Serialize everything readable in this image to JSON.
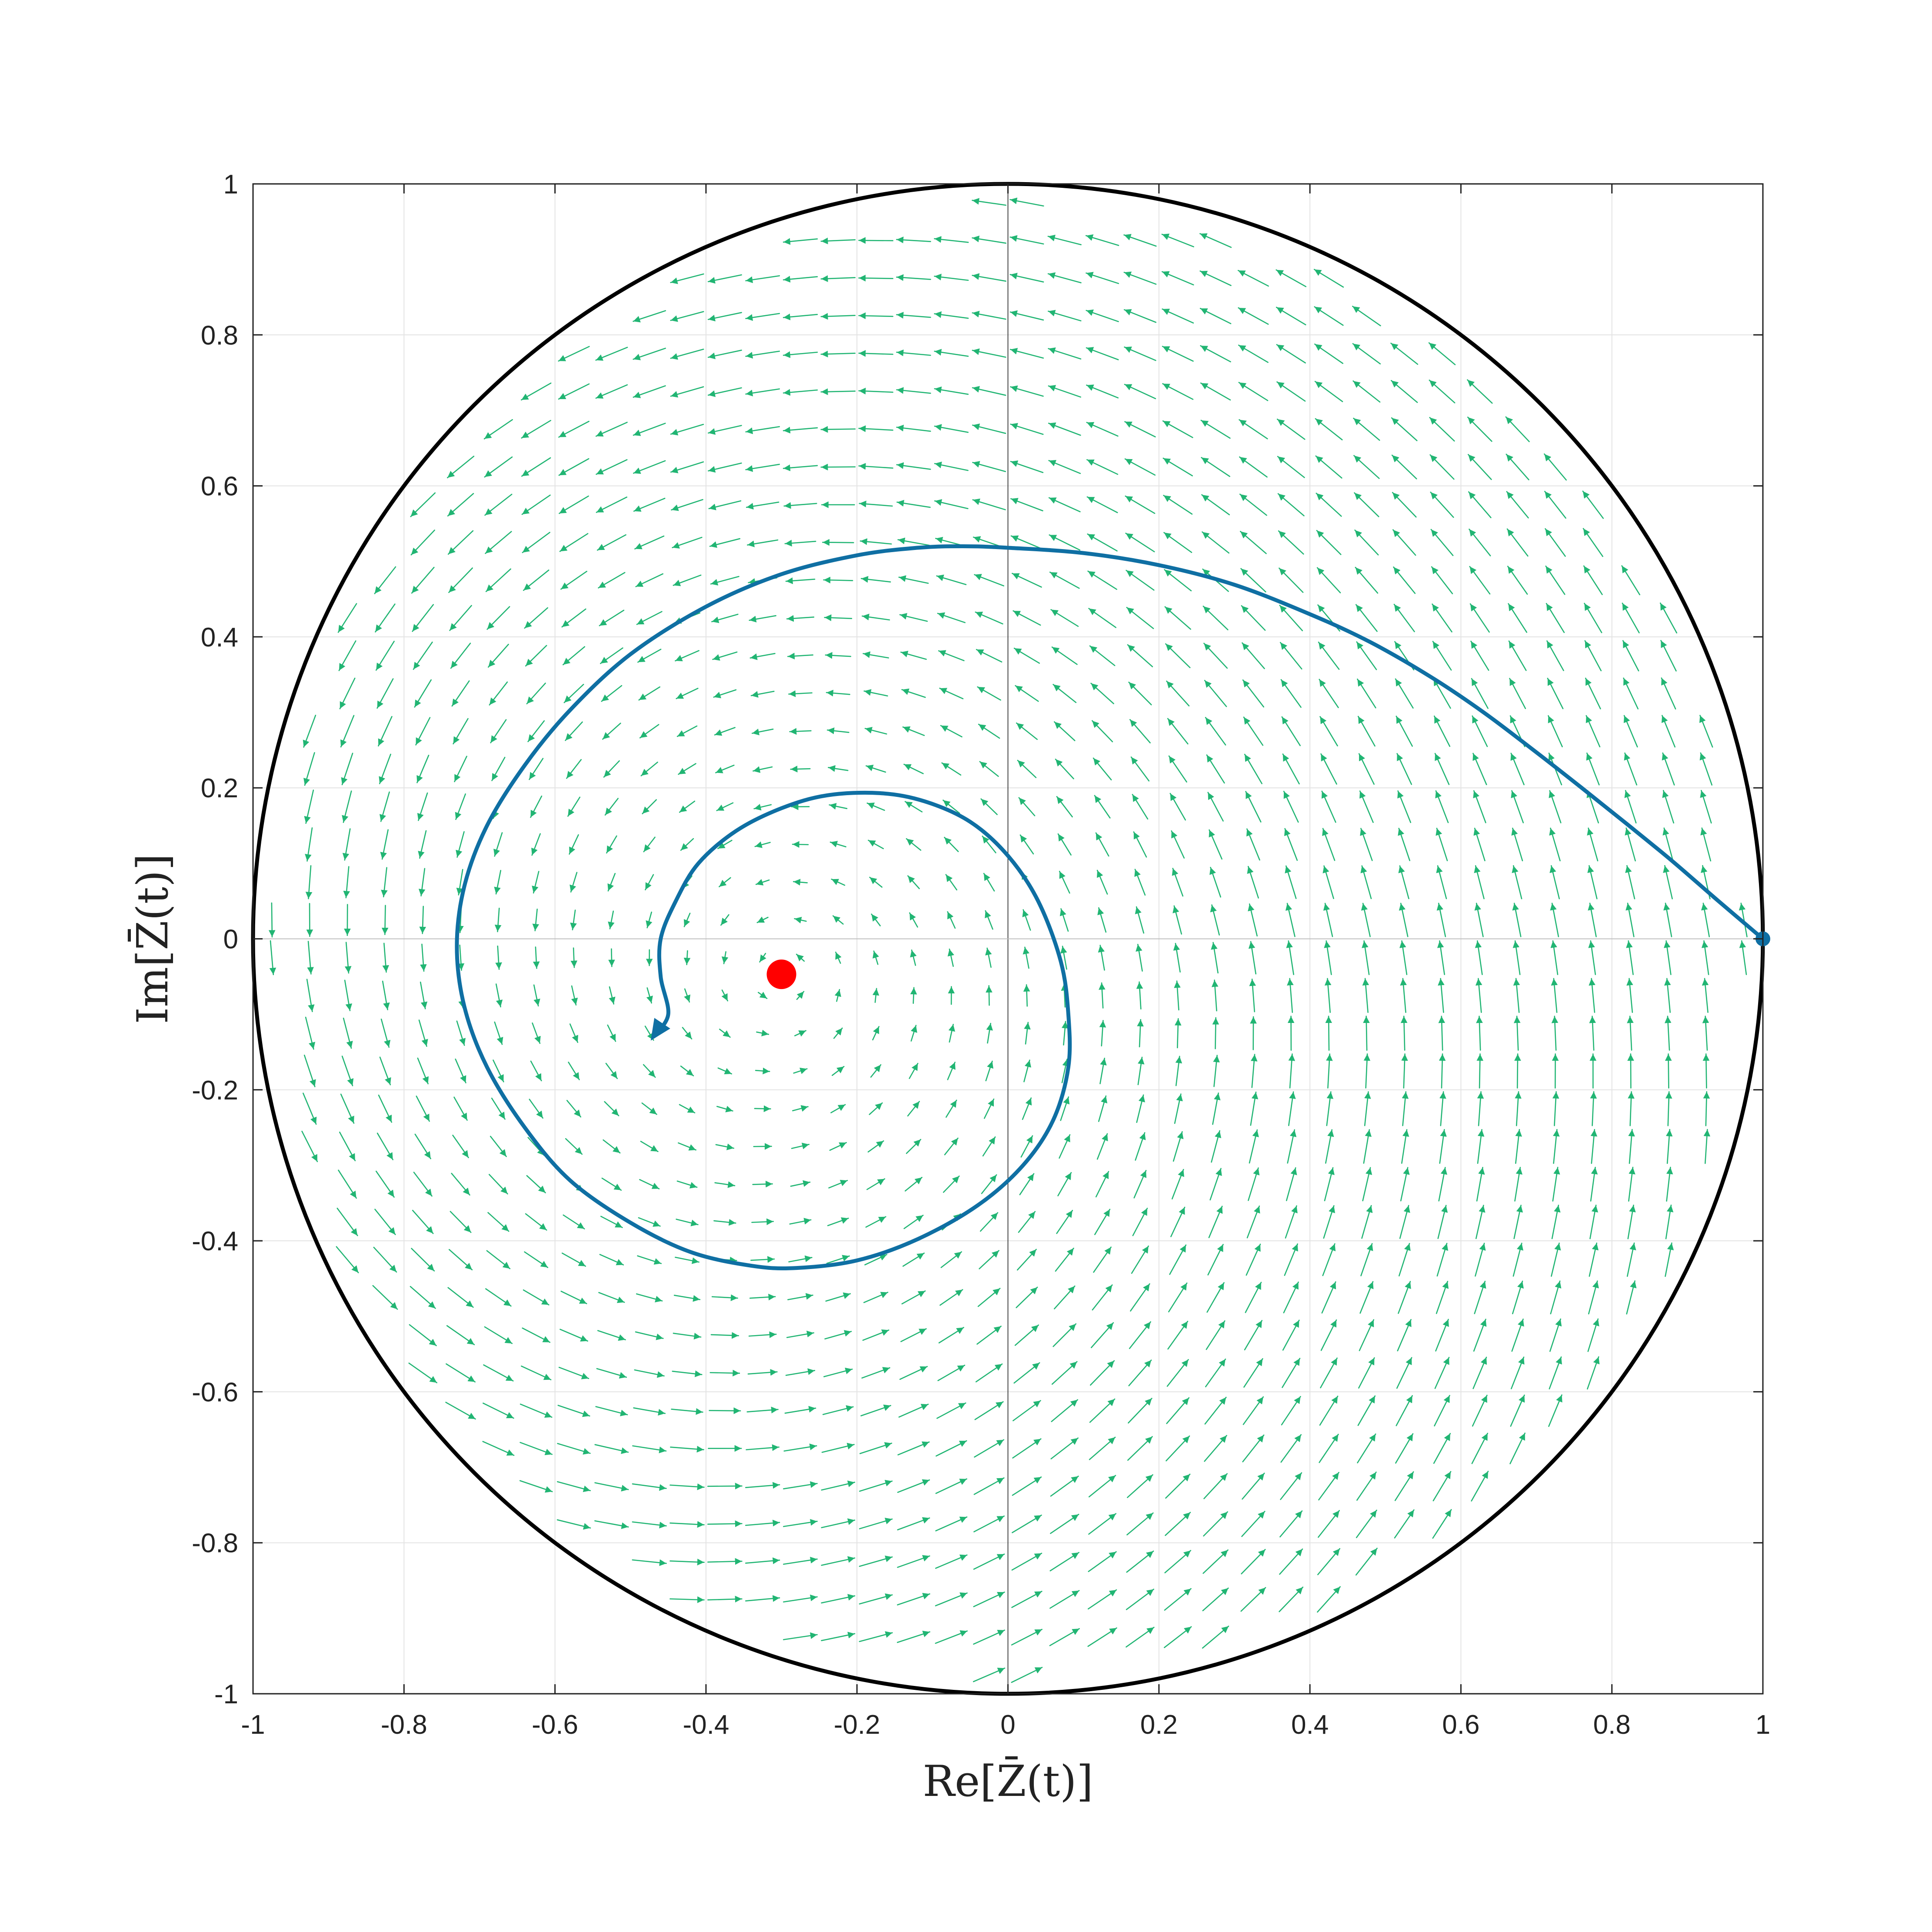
{
  "chart_data": {
    "type": "quiver",
    "title": "",
    "xlabel": "Re[Z̄(t)]",
    "ylabel": "Im[Z̄(t)]",
    "xlim": [
      -1,
      1
    ],
    "ylim": [
      -1,
      1
    ],
    "x_ticks": [
      "-1",
      "-0.8",
      "-0.6",
      "-0.4",
      "-0.2",
      "0",
      "0.2",
      "0.4",
      "0.6",
      "0.8",
      "1"
    ],
    "y_ticks": [
      "-1",
      "-0.8",
      "-0.6",
      "-0.4",
      "-0.2",
      "0",
      "0.2",
      "0.4",
      "0.6",
      "0.8",
      "1"
    ],
    "grid": true,
    "unit_circle": true,
    "fixed_point": [
      -0.3,
      -0.047
    ],
    "trajectory_start": [
      1,
      0
    ],
    "trajectory": [
      [
        1,
        0
      ],
      [
        0.94,
        0.051
      ],
      [
        0.88,
        0.103
      ],
      [
        0.82,
        0.152
      ],
      [
        0.76,
        0.2
      ],
      [
        0.7,
        0.247
      ],
      [
        0.63,
        0.3
      ],
      [
        0.56,
        0.347
      ],
      [
        0.48,
        0.393
      ],
      [
        0.4,
        0.43
      ],
      [
        0.3,
        0.469
      ],
      [
        0.2,
        0.495
      ],
      [
        0.1,
        0.511
      ],
      [
        0,
        0.518
      ],
      [
        -0.06,
        0.52
      ],
      [
        -0.12,
        0.518
      ],
      [
        -0.2,
        0.508
      ],
      [
        -0.3,
        0.483
      ],
      [
        -0.4,
        0.44
      ],
      [
        -0.5,
        0.377
      ],
      [
        -0.58,
        0.303
      ],
      [
        -0.64,
        0.23
      ],
      [
        -0.69,
        0.15
      ],
      [
        -0.72,
        0.07
      ],
      [
        -0.73,
        -0.01
      ],
      [
        -0.72,
        -0.09
      ],
      [
        -0.69,
        -0.17
      ],
      [
        -0.64,
        -0.25
      ],
      [
        -0.58,
        -0.32
      ],
      [
        -0.5,
        -0.376
      ],
      [
        -0.42,
        -0.415
      ],
      [
        -0.34,
        -0.433
      ],
      [
        -0.28,
        -0.436
      ],
      [
        -0.2,
        -0.426
      ],
      [
        -0.12,
        -0.398
      ],
      [
        -0.04,
        -0.353
      ],
      [
        0.02,
        -0.3
      ],
      [
        0.06,
        -0.24
      ],
      [
        0.08,
        -0.17
      ],
      [
        0.08,
        -0.1
      ],
      [
        0.07,
        -0.03
      ],
      [
        0.04,
        0.05
      ],
      [
        0,
        0.11
      ],
      [
        -0.05,
        0.155
      ],
      [
        -0.11,
        0.182
      ],
      [
        -0.17,
        0.193
      ],
      [
        -0.24,
        0.19
      ],
      [
        -0.3,
        0.173
      ],
      [
        -0.36,
        0.143
      ],
      [
        -0.41,
        0.1
      ],
      [
        -0.44,
        0.05
      ],
      [
        -0.46,
        0
      ],
      [
        -0.46,
        -0.05
      ],
      [
        -0.45,
        -0.1
      ],
      [
        -0.47,
        -0.13
      ]
    ],
    "vector_field": {
      "grid_spacing": 0.05,
      "description_free": true
    },
    "colors": {
      "trajectory": "#0f6fa3",
      "vectors": "#21b573",
      "fixed_point": "#ff0000",
      "circle": "#000000",
      "grid": "#e3e3e3"
    }
  }
}
